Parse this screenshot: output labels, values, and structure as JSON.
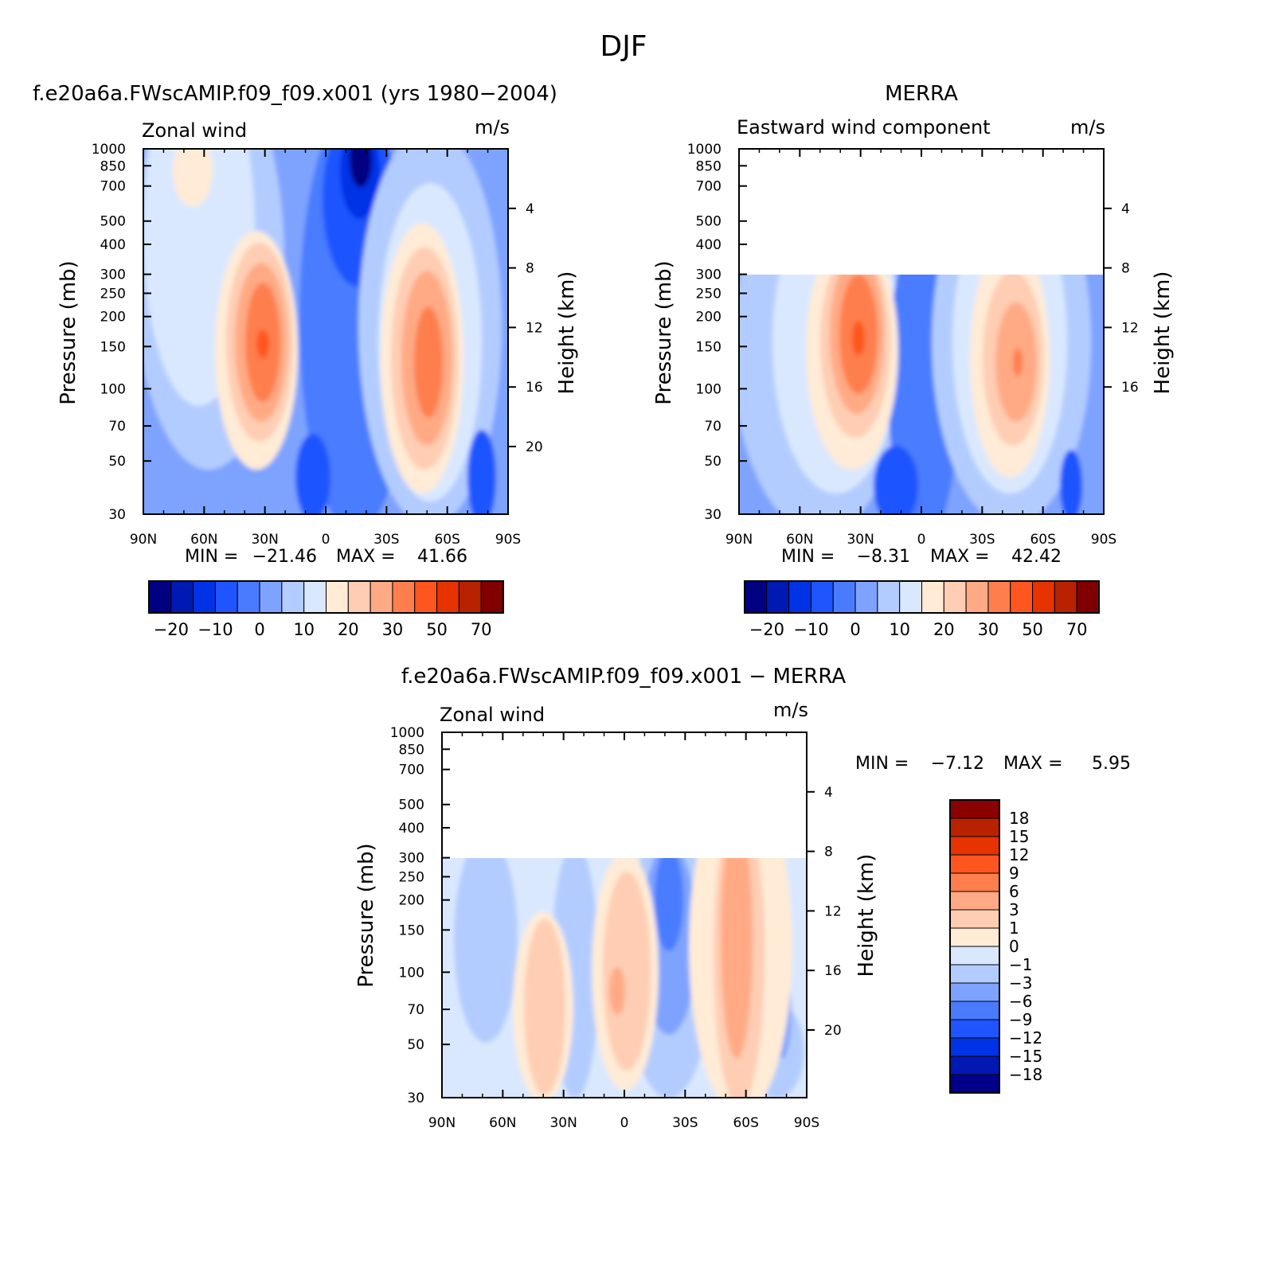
{
  "page_title": "DJF",
  "colors": {
    "model_scale": [
      "#000080",
      "#0019b3",
      "#0033e6",
      "#1e55ff",
      "#4a7bff",
      "#7ea3ff",
      "#b3ccff",
      "#d9e8ff",
      "#ffebd6",
      "#ffcdb3",
      "#ffaa85",
      "#ff7e4d",
      "#ff561f",
      "#e63300",
      "#b82200",
      "#800000"
    ],
    "diff_scale": [
      "#00008b",
      "#0019b3",
      "#0033e6",
      "#1e55ff",
      "#4a7bff",
      "#7ea3ff",
      "#b3ccff",
      "#d9e8ff",
      "#ffebd6",
      "#ffcdb3",
      "#ffaa85",
      "#ff7e4d",
      "#ff561f",
      "#e63300",
      "#b82200",
      "#8b0000"
    ],
    "missing": "#ffffff"
  },
  "chart_data": [
    {
      "type": "heatmap",
      "title": "f.e20a6a.FWscAMIP.f09_f09.x001 (yrs 1980−2004)",
      "subtitle_left": "Zonal wind",
      "subtitle_right": "m/s",
      "xlabel": "",
      "ylabel": "Pressure (mb)",
      "ylabel_right": "Height (km)",
      "x_ticks": [
        "90N",
        "60N",
        "30N",
        "0",
        "30S",
        "60S",
        "90S"
      ],
      "y_ticks": [
        "30",
        "50",
        "70",
        "100",
        "150",
        "200",
        "250",
        "300",
        "400",
        "500",
        "700",
        "850",
        "1000"
      ],
      "y_log_scale": true,
      "ylim": [
        1000,
        30
      ],
      "height_ticks": [
        "4",
        "8",
        "12",
        "16",
        "20"
      ],
      "stats": {
        "min_label": "MIN =",
        "min": "−21.46",
        "max_label": "MAX =",
        "max": "41.66"
      },
      "colorbar_labels": [
        "−20",
        "−10",
        "0",
        "10",
        "20",
        "30",
        "50",
        "70"
      ],
      "features": [
        {
          "kind": "westerly jet",
          "lat": 30,
          "pressure_mb": 200,
          "peak": 41.7
        },
        {
          "kind": "westerly jet",
          "lat": -50,
          "pressure_mb": 220,
          "peak": 38
        },
        {
          "kind": "easterly minimum",
          "lat": -15,
          "pressure_mb": 30,
          "peak": -21.5
        }
      ]
    },
    {
      "type": "heatmap",
      "title": "MERRA",
      "subtitle_left": "Eastward wind component",
      "subtitle_right": "m/s",
      "xlabel": "",
      "ylabel": "Pressure (mb)",
      "ylabel_right": "Height (km)",
      "x_ticks": [
        "90N",
        "60N",
        "30N",
        "0",
        "30S",
        "60S",
        "90S"
      ],
      "y_ticks": [
        "30",
        "50",
        "70",
        "100",
        "150",
        "200",
        "250",
        "300",
        "400",
        "500",
        "700",
        "850",
        "1000"
      ],
      "y_log_scale": true,
      "ylim": [
        1000,
        30
      ],
      "data_top_mb": 100,
      "height_ticks": [
        "4",
        "8",
        "12",
        "16"
      ],
      "stats": {
        "min_label": "MIN =",
        "min": "−8.31",
        "max_label": "MAX =",
        "max": "42.42"
      },
      "colorbar_labels": [
        "−20",
        "−10",
        "0",
        "10",
        "20",
        "30",
        "50",
        "70"
      ],
      "features": [
        {
          "kind": "westerly jet",
          "lat": 30,
          "pressure_mb": 200,
          "peak": 42.4
        },
        {
          "kind": "westerly jet",
          "lat": -48,
          "pressure_mb": 250,
          "peak": 33
        }
      ]
    },
    {
      "type": "heatmap",
      "title": "f.e20a6a.FWscAMIP.f09_f09.x001 − MERRA",
      "subtitle_left": "Zonal wind",
      "subtitle_right": "m/s",
      "xlabel": "",
      "ylabel": "Pressure (mb)",
      "ylabel_right": "Height (km)",
      "x_ticks": [
        "90N",
        "60N",
        "30N",
        "0",
        "30S",
        "60S",
        "90S"
      ],
      "y_ticks": [
        "30",
        "50",
        "70",
        "100",
        "150",
        "200",
        "250",
        "300",
        "400",
        "500",
        "700",
        "850",
        "1000"
      ],
      "y_log_scale": true,
      "ylim": [
        1000,
        30
      ],
      "data_top_mb": 100,
      "height_ticks": [
        "4",
        "8",
        "12",
        "16",
        "20"
      ],
      "stats": {
        "min_label": "MIN =",
        "min": "−7.12",
        "max_label": "MAX =",
        "max": "5.95"
      },
      "colorbar_labels": [
        "18",
        "15",
        "12",
        "9",
        "6",
        "3",
        "1",
        "0",
        "−1",
        "−3",
        "−6",
        "−9",
        "−12",
        "−15",
        "−18"
      ],
      "features": [
        {
          "kind": "positive anomaly",
          "lat": -50,
          "pressure_mb": 150,
          "peak": 5
        },
        {
          "kind": "positive anomaly",
          "lat": 2,
          "pressure_mb": 400,
          "peak": 6
        },
        {
          "kind": "negative anomaly",
          "lat": -18,
          "pressure_mb": 100,
          "peak": -7
        }
      ]
    }
  ]
}
